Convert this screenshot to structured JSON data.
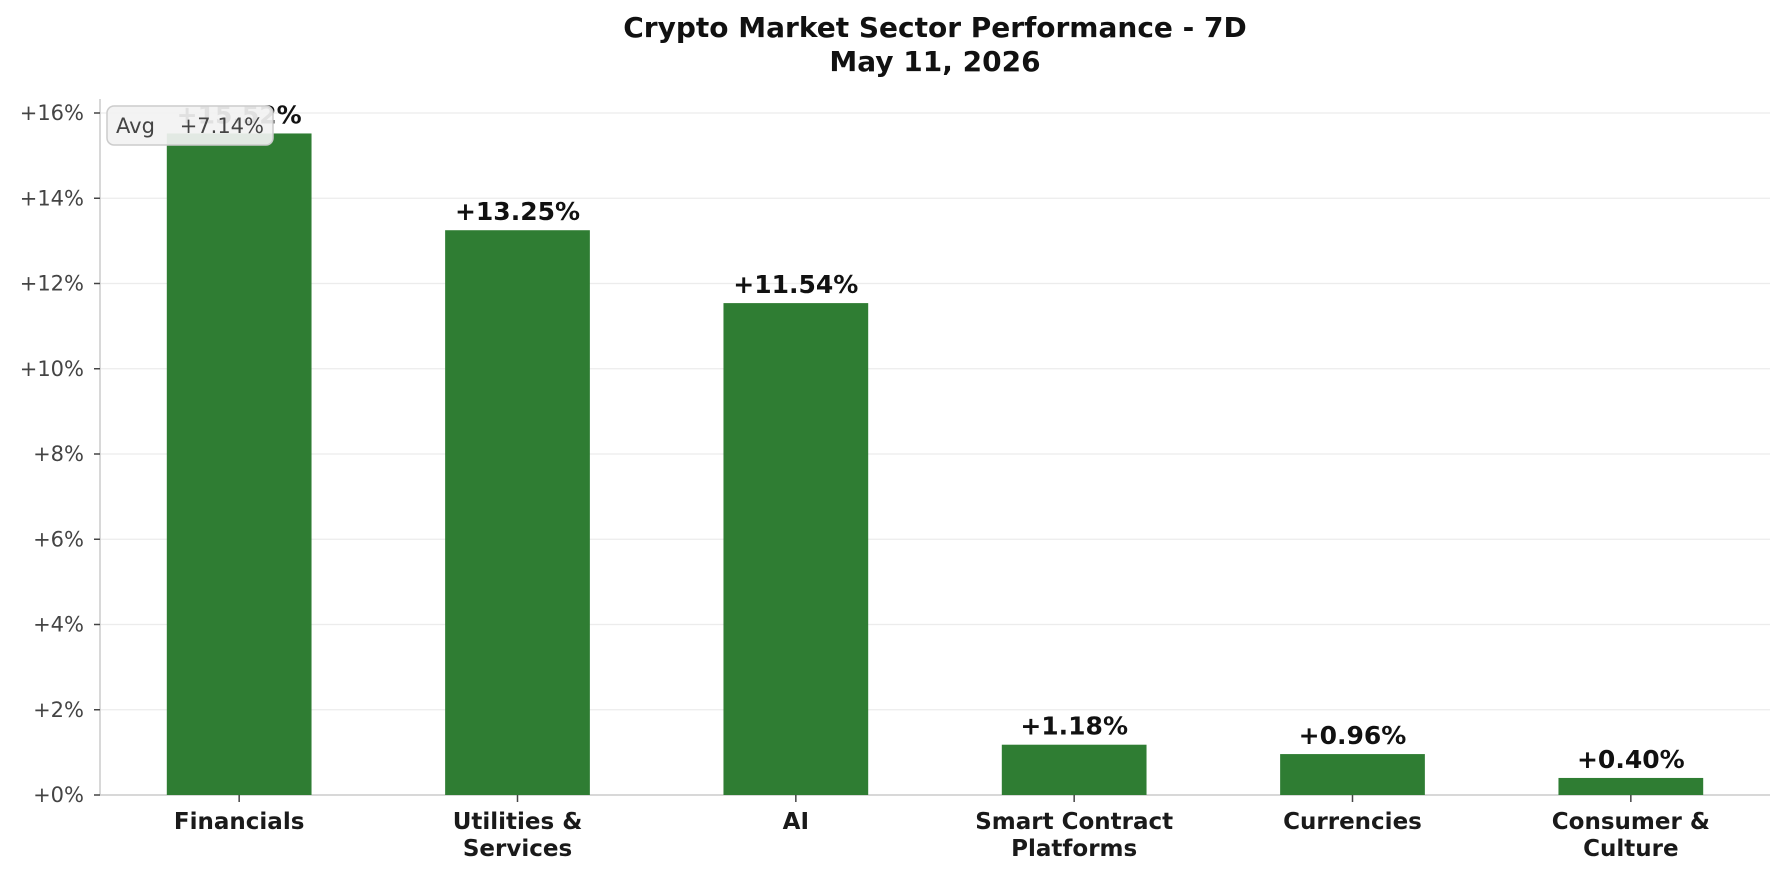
{
  "chart_data": {
    "type": "bar",
    "title_line1": "Crypto Market Sector Performance - 7D",
    "title_line2": "May 11, 2026",
    "categories": [
      [
        "Financials"
      ],
      [
        "Utilities &",
        "Services"
      ],
      [
        "AI"
      ],
      [
        "Smart Contract",
        "Platforms"
      ],
      [
        "Currencies"
      ],
      [
        "Consumer &",
        "Culture"
      ]
    ],
    "values": [
      15.52,
      13.25,
      11.54,
      1.18,
      0.96,
      0.4
    ],
    "data_labels": [
      "+15.52%",
      "+13.25%",
      "+11.54%",
      "+1.18%",
      "+0.96%",
      "+0.40%"
    ],
    "ylim": [
      0,
      16.3
    ],
    "yticks": [
      0,
      2,
      4,
      6,
      8,
      10,
      12,
      14,
      16
    ],
    "ytick_labels": [
      "+0%",
      "+2%",
      "+4%",
      "+6%",
      "+8%",
      "+10%",
      "+12%",
      "+14%",
      "+16%"
    ],
    "grid": true,
    "legend": {
      "label": "Avg",
      "value": "+7.14%",
      "placement": "top-left"
    },
    "colors": {
      "bar": "#2f7d33",
      "grid": "#ececec",
      "axis": "#cccccc",
      "legend_bg": "#f2f2f2",
      "legend_border": "#cccccc"
    }
  }
}
